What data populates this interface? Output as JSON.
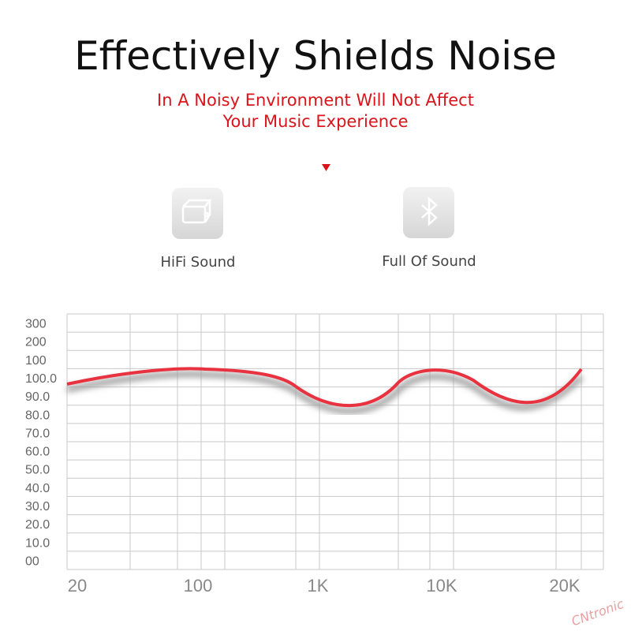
{
  "header": {
    "title": "Effectively Shields Noise",
    "subtitle": [
      "In A Noisy Environment Will Not Affect",
      "Your Music Experience"
    ]
  },
  "features": [
    {
      "label": "HiFi Sound"
    },
    {
      "label": "Full Of Sound"
    }
  ],
  "chart": {
    "y_labels": [
      "300",
      "200",
      "100",
      "100.0",
      "90.0",
      "80.0",
      "70.0",
      "60.0",
      "50.0",
      "40.0",
      "30.0",
      "20.0",
      "10.0",
      "00"
    ],
    "x_labels": [
      "20",
      "100",
      "1K",
      "10K",
      "20K"
    ]
  },
  "watermark": "CNtronic"
}
